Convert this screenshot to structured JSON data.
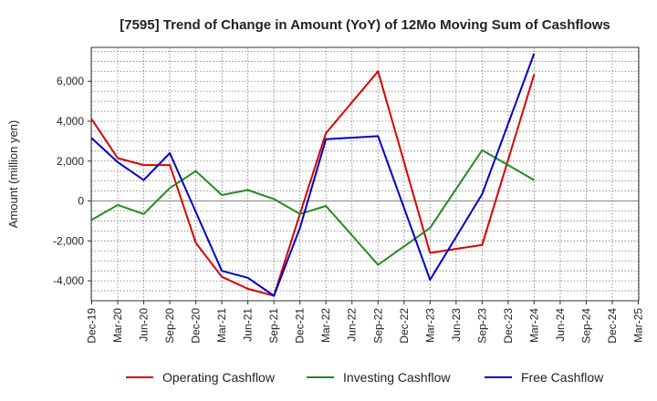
{
  "chart_data": {
    "type": "line",
    "title": "[7595]  Trend of Change in Amount (YoY) of 12Mo Moving Sum of Cashflows",
    "xlabel": "",
    "ylabel": "Amount (million yen)",
    "categories": [
      "Dec-19",
      "Mar-20",
      "Jun-20",
      "Sep-20",
      "Dec-20",
      "Mar-21",
      "Jun-21",
      "Sep-21",
      "Dec-21",
      "Mar-22",
      "Jun-22",
      "Sep-22",
      "Dec-22",
      "Mar-23",
      "Jun-23",
      "Sep-23",
      "Dec-23",
      "Mar-24",
      "Jun-24",
      "Sep-24",
      "Dec-24",
      "Mar-25"
    ],
    "ylim": [
      -5000,
      7700
    ],
    "yticks": [
      -4000,
      -2000,
      0,
      2000,
      4000,
      6000
    ],
    "ytick_labels": [
      "-4,000",
      "-2,000",
      "0",
      "2,000",
      "4,000",
      "6,000"
    ],
    "grid": true,
    "legend_position": "bottom",
    "series": [
      {
        "name": "Operating Cashflow",
        "color": "#dd0000",
        "values": [
          4100,
          2150,
          1800,
          1800,
          -2100,
          -3800,
          -4400,
          -4750,
          -650,
          3400,
          null,
          6500,
          null,
          -2600,
          null,
          -2200,
          null,
          6350,
          null,
          null,
          null,
          null
        ]
      },
      {
        "name": "Investing Cashflow",
        "color": "#228b22",
        "values": [
          -950,
          -200,
          -650,
          650,
          1500,
          300,
          550,
          100,
          -650,
          -250,
          null,
          -3200,
          null,
          -1350,
          null,
          2550,
          null,
          1050,
          null,
          null,
          null,
          null
        ]
      },
      {
        "name": "Free Cashflow",
        "color": "#0000cc",
        "values": [
          3150,
          1950,
          1050,
          2400,
          -550,
          -3500,
          -3850,
          -4750,
          -1350,
          3100,
          null,
          3250,
          null,
          -3950,
          null,
          350,
          null,
          7400,
          null,
          null,
          null,
          null
        ]
      }
    ]
  }
}
